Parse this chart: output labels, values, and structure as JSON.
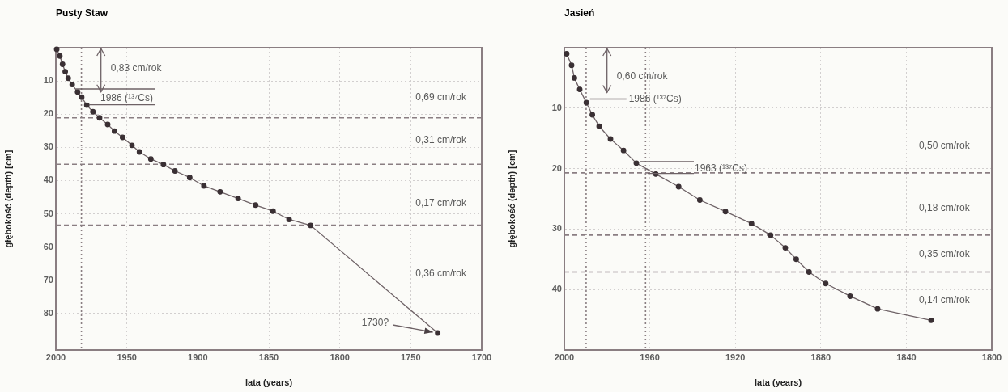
{
  "chart_data": [
    {
      "type": "line",
      "title": "Pusty Staw",
      "xlabel": "lata (years)",
      "ylabel": "głębokość (depth) [cm]",
      "marker": "circle",
      "line_style": "solid",
      "grid": true,
      "legend": false,
      "series": [
        {
          "color": "#6e6266",
          "x": [
            1999.4,
            1997.2,
            1995.3,
            1993.4,
            1991.3,
            1988.5,
            1984.7,
            1981.8,
            1978.2,
            1973.9,
            1969.2,
            1963.5,
            1958.7,
            1953.0,
            1946.4,
            1941.1,
            1933.1,
            1924.2,
            1916.1,
            1905.7,
            1895.7,
            1884.3,
            1871.6,
            1859.3,
            1847.0,
            1835.7,
            1820.5,
            1731.0
          ],
          "values": [
            0.5,
            2.5,
            5.0,
            7.2,
            9.2,
            11.1,
            13.3,
            14.9,
            17.3,
            19.3,
            21.1,
            23.1,
            25.1,
            27.0,
            29.4,
            31.4,
            33.5,
            35.2,
            37.1,
            39.1,
            41.6,
            43.4,
            45.4,
            47.4,
            49.2,
            51.7,
            53.5,
            85.9
          ]
        }
      ],
      "xlim": [
        2000,
        1700
      ],
      "xticks": [
        2000,
        1950,
        1900,
        1850,
        1800,
        1750,
        1700
      ],
      "ylim": [
        91,
        0
      ],
      "yticks": [
        10,
        20,
        30,
        40,
        50,
        60,
        70,
        80
      ],
      "ref_lines": [
        {
          "axis": "y",
          "value": 21.1,
          "line_style": "dashed",
          "color": "#8a7e82"
        },
        {
          "axis": "y",
          "value": 35.1,
          "line_style": "dashed",
          "color": "#8a7e82"
        },
        {
          "axis": "y",
          "value": 53.4,
          "line_style": "dashed",
          "color": "#8a7e82"
        },
        {
          "axis": "x",
          "value": 1982,
          "line_style": "dotted",
          "color": "#8a7e82"
        }
      ],
      "annotations": [
        "0,83 cm/rok",
        {
          "text": "1986 (¹³⁷Cs)",
          "x": 1986,
          "y": 12.4
        },
        "0,69 cm/rok",
        "0,31 cm/rok",
        "0,17 cm/rok",
        "0,36 cm/rok",
        {
          "text": "1730?",
          "x": 1731.0,
          "y": 85.9
        }
      ]
    },
    {
      "type": "line",
      "title": "Jasień",
      "xlabel": "lata (years)",
      "ylabel": "głębokość (depth) [cm]",
      "marker": "circle",
      "line_style": "solid",
      "grid": true,
      "legend": false,
      "series": [
        {
          "color": "#6e6266",
          "x": [
            1998.9,
            1996.6,
            1995.3,
            1992.8,
            1989.7,
            1986.9,
            1983.7,
            1978.4,
            1972.3,
            1966.3,
            1957.2,
            1946.5,
            1936.6,
            1924.6,
            1912.4,
            1903.5,
            1896.6,
            1891.5,
            1885.5,
            1877.7,
            1866.3,
            1853.4,
            1828.4
          ],
          "values": [
            1.0,
            2.9,
            5.0,
            6.9,
            9.1,
            11.1,
            13.0,
            15.1,
            17.0,
            19.1,
            20.9,
            23.0,
            25.2,
            27.1,
            29.1,
            31.0,
            33.1,
            35.0,
            37.1,
            39.0,
            41.1,
            43.2,
            45.1
          ]
        }
      ],
      "xlim": [
        2000,
        1800
      ],
      "xticks": [
        2000,
        1960,
        1920,
        1880,
        1840,
        1800
      ],
      "ylim": [
        50,
        0
      ],
      "yticks": [
        10,
        20,
        30,
        40
      ],
      "ref_lines": [
        {
          "axis": "y",
          "value": 20.7,
          "line_style": "dashed",
          "color": "#8a7e82"
        },
        {
          "axis": "y",
          "value": 31.0,
          "line_style": "dashed",
          "color": "#8a7e82"
        },
        {
          "axis": "y",
          "value": 37.1,
          "line_style": "dashed",
          "color": "#8a7e82"
        },
        {
          "axis": "x",
          "value": 1989.8,
          "line_style": "dotted",
          "color": "#8a7e82"
        },
        {
          "axis": "x",
          "value": 1962,
          "line_style": "dotted",
          "color": "#8a7e82"
        }
      ],
      "annotations": [
        "0,60 cm/rok",
        "1986 (¹³⁷Cs)",
        {
          "text": "1963 (¹³⁷Cs)",
          "x": 1966.3,
          "y": 19.1
        },
        "0,50 cm/rok",
        "0,18 cm/rok",
        "0,35 cm/rok",
        "0,14 cm/rok"
      ]
    }
  ]
}
